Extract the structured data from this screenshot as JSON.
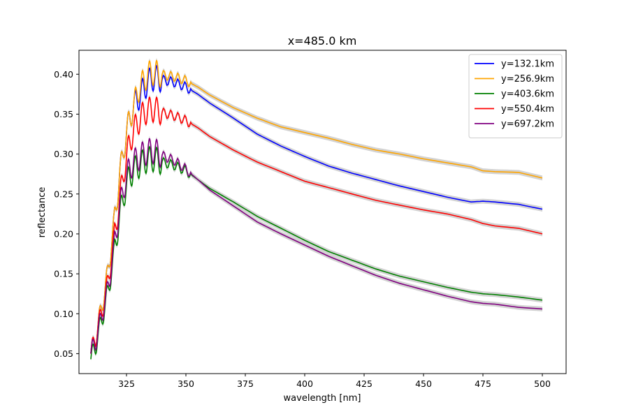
{
  "chart_data": {
    "type": "line",
    "title": "x=485.0 km",
    "xlabel": "wavelength [nm]",
    "ylabel": "reflectance",
    "xlim": [
      305,
      510
    ],
    "ylim": [
      0.025,
      0.43
    ],
    "xticks": [
      325,
      350,
      375,
      400,
      425,
      450,
      475,
      500
    ],
    "xtick_labels": [
      "325",
      "350",
      "375",
      "400",
      "425",
      "450",
      "475",
      "500"
    ],
    "yticks": [
      0.05,
      0.1,
      0.15,
      0.2,
      0.25,
      0.3,
      0.35,
      0.4
    ],
    "ytick_labels": [
      "0.05",
      "0.10",
      "0.15",
      "0.20",
      "0.25",
      "0.30",
      "0.35",
      "0.40"
    ],
    "grid": false,
    "legend_position": "top-right",
    "uncertainty_band_color": "#d3d3d3",
    "series": [
      {
        "name": "y=132.1km",
        "color": "#0000ff",
        "x": [
          310,
          312,
          314,
          316,
          318,
          320,
          322,
          324,
          326,
          328,
          330,
          332,
          334,
          336,
          338,
          340,
          345,
          350,
          355,
          360,
          370,
          380,
          390,
          400,
          410,
          420,
          430,
          440,
          450,
          460,
          470,
          475,
          480,
          490,
          500
        ],
        "y": [
          0.05,
          0.07,
          0.1,
          0.13,
          0.17,
          0.22,
          0.27,
          0.31,
          0.34,
          0.36,
          0.37,
          0.38,
          0.39,
          0.395,
          0.395,
          0.393,
          0.39,
          0.384,
          0.375,
          0.364,
          0.345,
          0.325,
          0.31,
          0.297,
          0.285,
          0.276,
          0.268,
          0.26,
          0.253,
          0.246,
          0.24,
          0.241,
          0.24,
          0.237,
          0.231
        ]
      },
      {
        "name": "y=256.9km",
        "color": "#ffa500",
        "x": [
          310,
          312,
          314,
          316,
          318,
          320,
          322,
          324,
          326,
          328,
          330,
          332,
          334,
          336,
          338,
          340,
          345,
          350,
          355,
          360,
          370,
          380,
          390,
          400,
          410,
          420,
          430,
          440,
          450,
          460,
          470,
          475,
          480,
          490,
          500
        ],
        "y": [
          0.05,
          0.07,
          0.1,
          0.13,
          0.17,
          0.22,
          0.27,
          0.31,
          0.34,
          0.36,
          0.38,
          0.39,
          0.4,
          0.402,
          0.401,
          0.399,
          0.397,
          0.392,
          0.384,
          0.374,
          0.358,
          0.345,
          0.334,
          0.327,
          0.32,
          0.312,
          0.305,
          0.3,
          0.294,
          0.289,
          0.284,
          0.279,
          0.278,
          0.277,
          0.27
        ]
      },
      {
        "name": "y=403.6km",
        "color": "#008000",
        "x": [
          310,
          312,
          314,
          316,
          318,
          320,
          322,
          324,
          326,
          328,
          330,
          332,
          334,
          336,
          338,
          340,
          345,
          350,
          355,
          360,
          370,
          380,
          390,
          400,
          410,
          420,
          430,
          440,
          450,
          460,
          470,
          475,
          480,
          490,
          500
        ],
        "y": [
          0.043,
          0.06,
          0.085,
          0.11,
          0.14,
          0.18,
          0.22,
          0.25,
          0.27,
          0.28,
          0.285,
          0.29,
          0.293,
          0.294,
          0.292,
          0.29,
          0.286,
          0.279,
          0.268,
          0.257,
          0.24,
          0.222,
          0.207,
          0.192,
          0.178,
          0.167,
          0.156,
          0.147,
          0.14,
          0.133,
          0.127,
          0.125,
          0.124,
          0.121,
          0.117
        ]
      },
      {
        "name": "y=550.4km",
        "color": "#ff0000",
        "x": [
          310,
          312,
          314,
          316,
          318,
          320,
          322,
          324,
          326,
          328,
          330,
          332,
          334,
          336,
          338,
          340,
          345,
          350,
          355,
          360,
          370,
          380,
          390,
          400,
          410,
          420,
          430,
          440,
          450,
          460,
          470,
          475,
          480,
          490,
          500
        ],
        "y": [
          0.05,
          0.07,
          0.095,
          0.12,
          0.155,
          0.2,
          0.24,
          0.28,
          0.31,
          0.33,
          0.34,
          0.35,
          0.355,
          0.356,
          0.355,
          0.352,
          0.348,
          0.342,
          0.333,
          0.322,
          0.305,
          0.29,
          0.278,
          0.266,
          0.258,
          0.25,
          0.242,
          0.236,
          0.23,
          0.225,
          0.218,
          0.213,
          0.21,
          0.207,
          0.2
        ]
      },
      {
        "name": "y=697.2km",
        "color": "#800080",
        "x": [
          310,
          312,
          314,
          316,
          318,
          320,
          322,
          324,
          326,
          328,
          330,
          332,
          334,
          336,
          338,
          340,
          345,
          350,
          355,
          360,
          370,
          380,
          390,
          400,
          410,
          420,
          430,
          440,
          450,
          460,
          470,
          475,
          480,
          490,
          500
        ],
        "y": [
          0.05,
          0.065,
          0.09,
          0.115,
          0.145,
          0.19,
          0.23,
          0.26,
          0.28,
          0.29,
          0.295,
          0.3,
          0.303,
          0.304,
          0.302,
          0.298,
          0.292,
          0.281,
          0.268,
          0.255,
          0.235,
          0.215,
          0.2,
          0.186,
          0.172,
          0.16,
          0.148,
          0.138,
          0.13,
          0.122,
          0.115,
          0.113,
          0.112,
          0.108,
          0.106
        ]
      }
    ]
  }
}
